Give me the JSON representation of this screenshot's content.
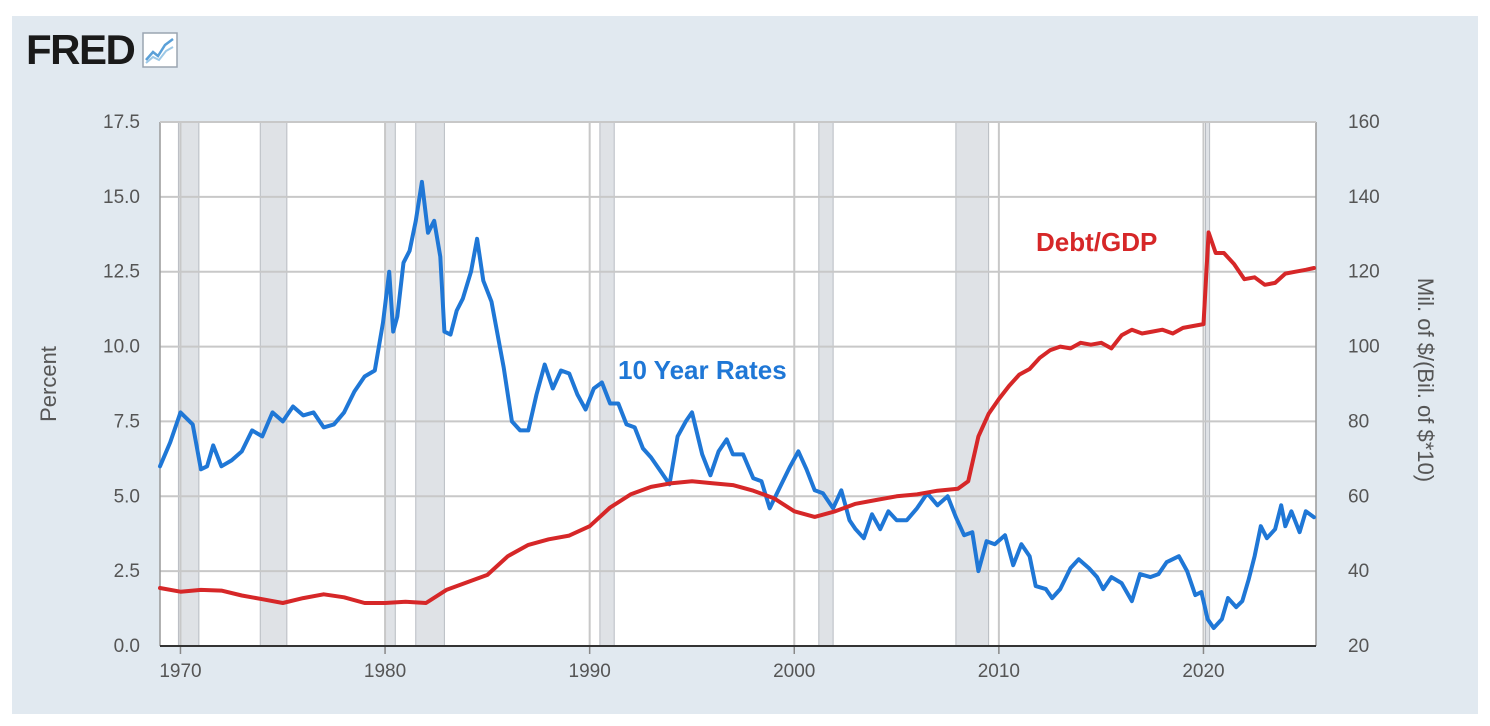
{
  "logo": {
    "text": "FRED",
    "icon": "line-chart-icon"
  },
  "colors": {
    "background": "#e1e9f0",
    "plot": "#ffffff",
    "grid": "#c8c8c8",
    "recession": "#dfe2e6",
    "rates": "#1f77d6",
    "debt": "#d62728"
  },
  "chart_data": {
    "type": "line",
    "x_ticks": [
      "1970",
      "1980",
      "1990",
      "2000",
      "2010",
      "2020"
    ],
    "xlim": [
      1969,
      2025.5
    ],
    "y_left": {
      "label": "Percent",
      "ticks": [
        "0.0",
        "2.5",
        "5.0",
        "7.5",
        "10.0",
        "12.5",
        "15.0",
        "17.5"
      ],
      "lim": [
        0,
        17.5
      ]
    },
    "y_right": {
      "label": "Mil. of $/(Bil. of $*10)",
      "ticks": [
        "20",
        "40",
        "60",
        "80",
        "100",
        "120",
        "140",
        "160"
      ],
      "lim": [
        20,
        160
      ]
    },
    "grid": true,
    "recessions": [
      [
        1969.9,
        1970.9
      ],
      [
        1973.9,
        1975.2
      ],
      [
        1980.0,
        1980.5
      ],
      [
        1981.5,
        1982.9
      ],
      [
        1990.5,
        1991.2
      ],
      [
        2001.2,
        2001.9
      ],
      [
        2007.9,
        2009.5
      ],
      [
        2020.1,
        2020.3
      ]
    ],
    "annotations": [
      {
        "text": "10 Year Rates",
        "series": "rates"
      },
      {
        "text": "Debt/GDP",
        "series": "debt"
      }
    ],
    "series": [
      {
        "name": "10 Year Rates",
        "axis": "left",
        "points": [
          [
            1969.0,
            6.0
          ],
          [
            1969.5,
            6.8
          ],
          [
            1970.0,
            7.8
          ],
          [
            1970.3,
            7.6
          ],
          [
            1970.6,
            7.4
          ],
          [
            1971.0,
            5.9
          ],
          [
            1971.3,
            6.0
          ],
          [
            1971.6,
            6.7
          ],
          [
            1972.0,
            6.0
          ],
          [
            1972.5,
            6.2
          ],
          [
            1973.0,
            6.5
          ],
          [
            1973.5,
            7.2
          ],
          [
            1974.0,
            7.0
          ],
          [
            1974.5,
            7.8
          ],
          [
            1975.0,
            7.5
          ],
          [
            1975.5,
            8.0
          ],
          [
            1976.0,
            7.7
          ],
          [
            1976.5,
            7.8
          ],
          [
            1977.0,
            7.3
          ],
          [
            1977.5,
            7.4
          ],
          [
            1978.0,
            7.8
          ],
          [
            1978.5,
            8.5
          ],
          [
            1979.0,
            9.0
          ],
          [
            1979.5,
            9.2
          ],
          [
            1979.9,
            10.8
          ],
          [
            1980.2,
            12.5
          ],
          [
            1980.4,
            10.5
          ],
          [
            1980.6,
            11.0
          ],
          [
            1980.9,
            12.8
          ],
          [
            1981.2,
            13.2
          ],
          [
            1981.5,
            14.2
          ],
          [
            1981.8,
            15.5
          ],
          [
            1982.1,
            13.8
          ],
          [
            1982.4,
            14.2
          ],
          [
            1982.7,
            13.0
          ],
          [
            1982.9,
            10.5
          ],
          [
            1983.2,
            10.4
          ],
          [
            1983.5,
            11.2
          ],
          [
            1983.8,
            11.6
          ],
          [
            1984.2,
            12.5
          ],
          [
            1984.5,
            13.6
          ],
          [
            1984.8,
            12.2
          ],
          [
            1985.2,
            11.5
          ],
          [
            1985.5,
            10.4
          ],
          [
            1985.8,
            9.3
          ],
          [
            1986.2,
            7.5
          ],
          [
            1986.6,
            7.2
          ],
          [
            1987.0,
            7.2
          ],
          [
            1987.4,
            8.4
          ],
          [
            1987.8,
            9.4
          ],
          [
            1988.2,
            8.6
          ],
          [
            1988.6,
            9.2
          ],
          [
            1989.0,
            9.1
          ],
          [
            1989.4,
            8.4
          ],
          [
            1989.8,
            7.9
          ],
          [
            1990.2,
            8.6
          ],
          [
            1990.6,
            8.8
          ],
          [
            1991.0,
            8.1
          ],
          [
            1991.4,
            8.1
          ],
          [
            1991.8,
            7.4
          ],
          [
            1992.2,
            7.3
          ],
          [
            1992.6,
            6.6
          ],
          [
            1993.0,
            6.3
          ],
          [
            1993.5,
            5.8
          ],
          [
            1993.9,
            5.4
          ],
          [
            1994.3,
            7.0
          ],
          [
            1994.7,
            7.5
          ],
          [
            1995.0,
            7.8
          ],
          [
            1995.5,
            6.4
          ],
          [
            1995.9,
            5.7
          ],
          [
            1996.3,
            6.5
          ],
          [
            1996.7,
            6.9
          ],
          [
            1997.0,
            6.4
          ],
          [
            1997.5,
            6.4
          ],
          [
            1998.0,
            5.6
          ],
          [
            1998.4,
            5.5
          ],
          [
            1998.8,
            4.6
          ],
          [
            1999.3,
            5.3
          ],
          [
            1999.8,
            6.0
          ],
          [
            2000.2,
            6.5
          ],
          [
            2000.6,
            5.9
          ],
          [
            2001.0,
            5.2
          ],
          [
            2001.4,
            5.1
          ],
          [
            2001.9,
            4.6
          ],
          [
            2002.3,
            5.2
          ],
          [
            2002.7,
            4.2
          ],
          [
            2003.0,
            3.9
          ],
          [
            2003.4,
            3.6
          ],
          [
            2003.8,
            4.4
          ],
          [
            2004.2,
            3.9
          ],
          [
            2004.6,
            4.5
          ],
          [
            2005.0,
            4.2
          ],
          [
            2005.5,
            4.2
          ],
          [
            2006.0,
            4.6
          ],
          [
            2006.5,
            5.1
          ],
          [
            2007.0,
            4.7
          ],
          [
            2007.5,
            5.0
          ],
          [
            2007.9,
            4.3
          ],
          [
            2008.3,
            3.7
          ],
          [
            2008.7,
            3.8
          ],
          [
            2009.0,
            2.5
          ],
          [
            2009.4,
            3.5
          ],
          [
            2009.8,
            3.4
          ],
          [
            2010.3,
            3.7
          ],
          [
            2010.7,
            2.7
          ],
          [
            2011.1,
            3.4
          ],
          [
            2011.5,
            3.0
          ],
          [
            2011.8,
            2.0
          ],
          [
            2012.3,
            1.9
          ],
          [
            2012.6,
            1.6
          ],
          [
            2013.0,
            1.9
          ],
          [
            2013.5,
            2.6
          ],
          [
            2013.9,
            2.9
          ],
          [
            2014.4,
            2.6
          ],
          [
            2014.8,
            2.3
          ],
          [
            2015.1,
            1.9
          ],
          [
            2015.5,
            2.3
          ],
          [
            2016.0,
            2.1
          ],
          [
            2016.5,
            1.5
          ],
          [
            2016.9,
            2.4
          ],
          [
            2017.4,
            2.3
          ],
          [
            2017.8,
            2.4
          ],
          [
            2018.2,
            2.8
          ],
          [
            2018.8,
            3.0
          ],
          [
            2019.2,
            2.5
          ],
          [
            2019.6,
            1.7
          ],
          [
            2019.9,
            1.8
          ],
          [
            2020.2,
            0.9
          ],
          [
            2020.5,
            0.6
          ],
          [
            2020.9,
            0.9
          ],
          [
            2021.2,
            1.6
          ],
          [
            2021.6,
            1.3
          ],
          [
            2021.9,
            1.5
          ],
          [
            2022.2,
            2.2
          ],
          [
            2022.5,
            3.0
          ],
          [
            2022.8,
            4.0
          ],
          [
            2023.1,
            3.6
          ],
          [
            2023.5,
            3.9
          ],
          [
            2023.8,
            4.7
          ],
          [
            2024.0,
            4.0
          ],
          [
            2024.3,
            4.5
          ],
          [
            2024.7,
            3.8
          ],
          [
            2025.0,
            4.5
          ],
          [
            2025.4,
            4.3
          ]
        ]
      },
      {
        "name": "Debt/GDP",
        "axis": "right",
        "points": [
          [
            1969.0,
            35.5
          ],
          [
            1970.0,
            34.5
          ],
          [
            1971.0,
            35.0
          ],
          [
            1972.0,
            34.8
          ],
          [
            1973.0,
            33.5
          ],
          [
            1974.0,
            32.5
          ],
          [
            1975.0,
            31.5
          ],
          [
            1976.0,
            32.8
          ],
          [
            1977.0,
            33.8
          ],
          [
            1978.0,
            33.0
          ],
          [
            1979.0,
            31.5
          ],
          [
            1980.0,
            31.5
          ],
          [
            1981.0,
            31.8
          ],
          [
            1982.0,
            31.5
          ],
          [
            1983.0,
            35.0
          ],
          [
            1984.0,
            37.0
          ],
          [
            1985.0,
            39.0
          ],
          [
            1986.0,
            44.0
          ],
          [
            1987.0,
            47.0
          ],
          [
            1988.0,
            48.5
          ],
          [
            1989.0,
            49.5
          ],
          [
            1990.0,
            52.0
          ],
          [
            1991.0,
            57.0
          ],
          [
            1992.0,
            60.5
          ],
          [
            1993.0,
            62.5
          ],
          [
            1994.0,
            63.5
          ],
          [
            1995.0,
            64.0
          ],
          [
            1996.0,
            63.5
          ],
          [
            1997.0,
            63.0
          ],
          [
            1998.0,
            61.5
          ],
          [
            1999.0,
            59.5
          ],
          [
            2000.0,
            56.0
          ],
          [
            2001.0,
            54.5
          ],
          [
            2002.0,
            56.0
          ],
          [
            2003.0,
            58.0
          ],
          [
            2004.0,
            59.0
          ],
          [
            2005.0,
            60.0
          ],
          [
            2006.0,
            60.5
          ],
          [
            2007.0,
            61.5
          ],
          [
            2008.0,
            62.0
          ],
          [
            2008.5,
            64.0
          ],
          [
            2009.0,
            76.0
          ],
          [
            2009.5,
            82.0
          ],
          [
            2010.0,
            86.0
          ],
          [
            2010.5,
            89.5
          ],
          [
            2011.0,
            92.5
          ],
          [
            2011.5,
            94.0
          ],
          [
            2012.0,
            97.0
          ],
          [
            2012.5,
            99.0
          ],
          [
            2013.0,
            100.0
          ],
          [
            2013.5,
            99.5
          ],
          [
            2014.0,
            101.0
          ],
          [
            2014.5,
            100.5
          ],
          [
            2015.0,
            101.0
          ],
          [
            2015.5,
            99.5
          ],
          [
            2016.0,
            103.0
          ],
          [
            2016.5,
            104.5
          ],
          [
            2017.0,
            103.5
          ],
          [
            2017.5,
            104.0
          ],
          [
            2018.0,
            104.5
          ],
          [
            2018.5,
            103.5
          ],
          [
            2019.0,
            105.0
          ],
          [
            2019.5,
            105.5
          ],
          [
            2020.0,
            106.0
          ],
          [
            2020.25,
            130.5
          ],
          [
            2020.6,
            125.0
          ],
          [
            2021.0,
            125.0
          ],
          [
            2021.5,
            122.0
          ],
          [
            2022.0,
            118.0
          ],
          [
            2022.5,
            118.5
          ],
          [
            2023.0,
            116.5
          ],
          [
            2023.5,
            117.0
          ],
          [
            2024.0,
            119.5
          ],
          [
            2024.5,
            120.0
          ],
          [
            2025.0,
            120.5
          ],
          [
            2025.4,
            121.0
          ]
        ]
      }
    ]
  }
}
